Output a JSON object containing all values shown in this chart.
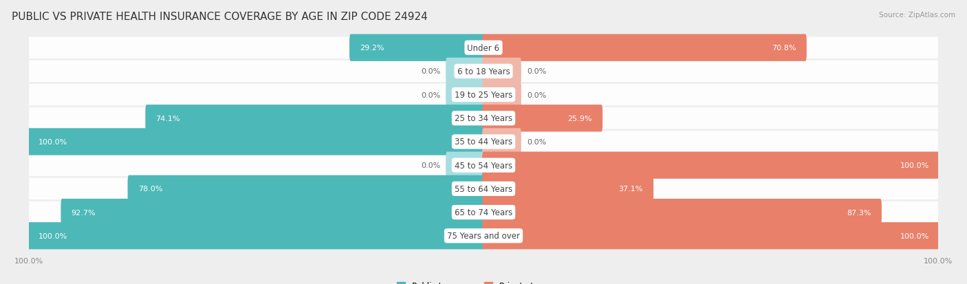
{
  "title": "PUBLIC VS PRIVATE HEALTH INSURANCE COVERAGE BY AGE IN ZIP CODE 24924",
  "source": "Source: ZipAtlas.com",
  "categories": [
    "Under 6",
    "6 to 18 Years",
    "19 to 25 Years",
    "25 to 34 Years",
    "35 to 44 Years",
    "45 to 54 Years",
    "55 to 64 Years",
    "65 to 74 Years",
    "75 Years and over"
  ],
  "public_values": [
    29.2,
    0.0,
    0.0,
    74.1,
    100.0,
    0.0,
    78.0,
    92.7,
    100.0
  ],
  "private_values": [
    70.8,
    0.0,
    0.0,
    25.9,
    0.0,
    100.0,
    37.1,
    87.3,
    100.0
  ],
  "public_color": "#4db8b8",
  "public_color_light": "#a8dde0",
  "private_color": "#e8806a",
  "private_color_light": "#f0b8aa",
  "bg_color": "#eeeeee",
  "row_bg_color": "#f9f9f9",
  "bar_height": 0.55,
  "stub_size": 8.0,
  "title_fontsize": 11,
  "label_fontsize": 8.0,
  "category_fontsize": 8.5,
  "axis_label_fontsize": 8,
  "legend_fontsize": 8.5,
  "x_axis_labels": [
    "100.0%",
    "100.0%"
  ]
}
